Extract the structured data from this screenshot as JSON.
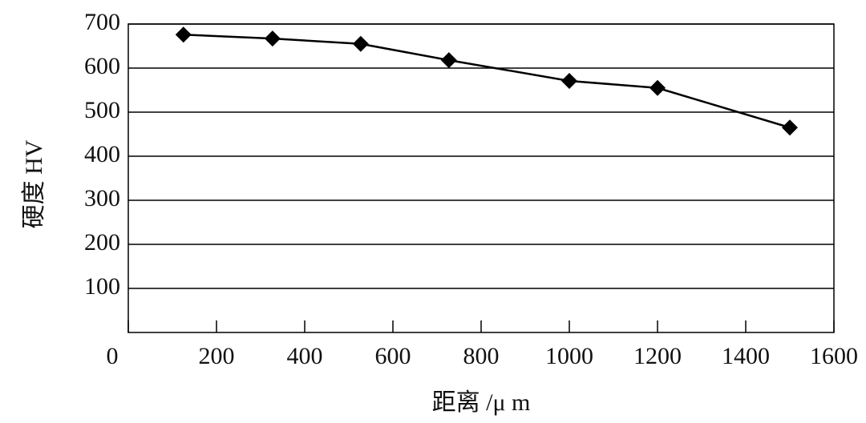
{
  "chart_data": {
    "type": "line",
    "x_label": "距离 /μ m",
    "y_label": "硬度 HV",
    "x": [
      125,
      327,
      527,
      727,
      1000,
      1200,
      1500
    ],
    "values": [
      676,
      667,
      655,
      618,
      571,
      555,
      465
    ],
    "color": "#000000",
    "xlim": [
      0,
      1600
    ],
    "xticks": [
      0,
      200,
      400,
      600,
      800,
      1000,
      1200,
      1400,
      1600
    ],
    "ylim": [
      0,
      700
    ],
    "yticks": [
      100,
      200,
      300,
      400,
      500,
      600,
      700
    ],
    "grid": true
  }
}
